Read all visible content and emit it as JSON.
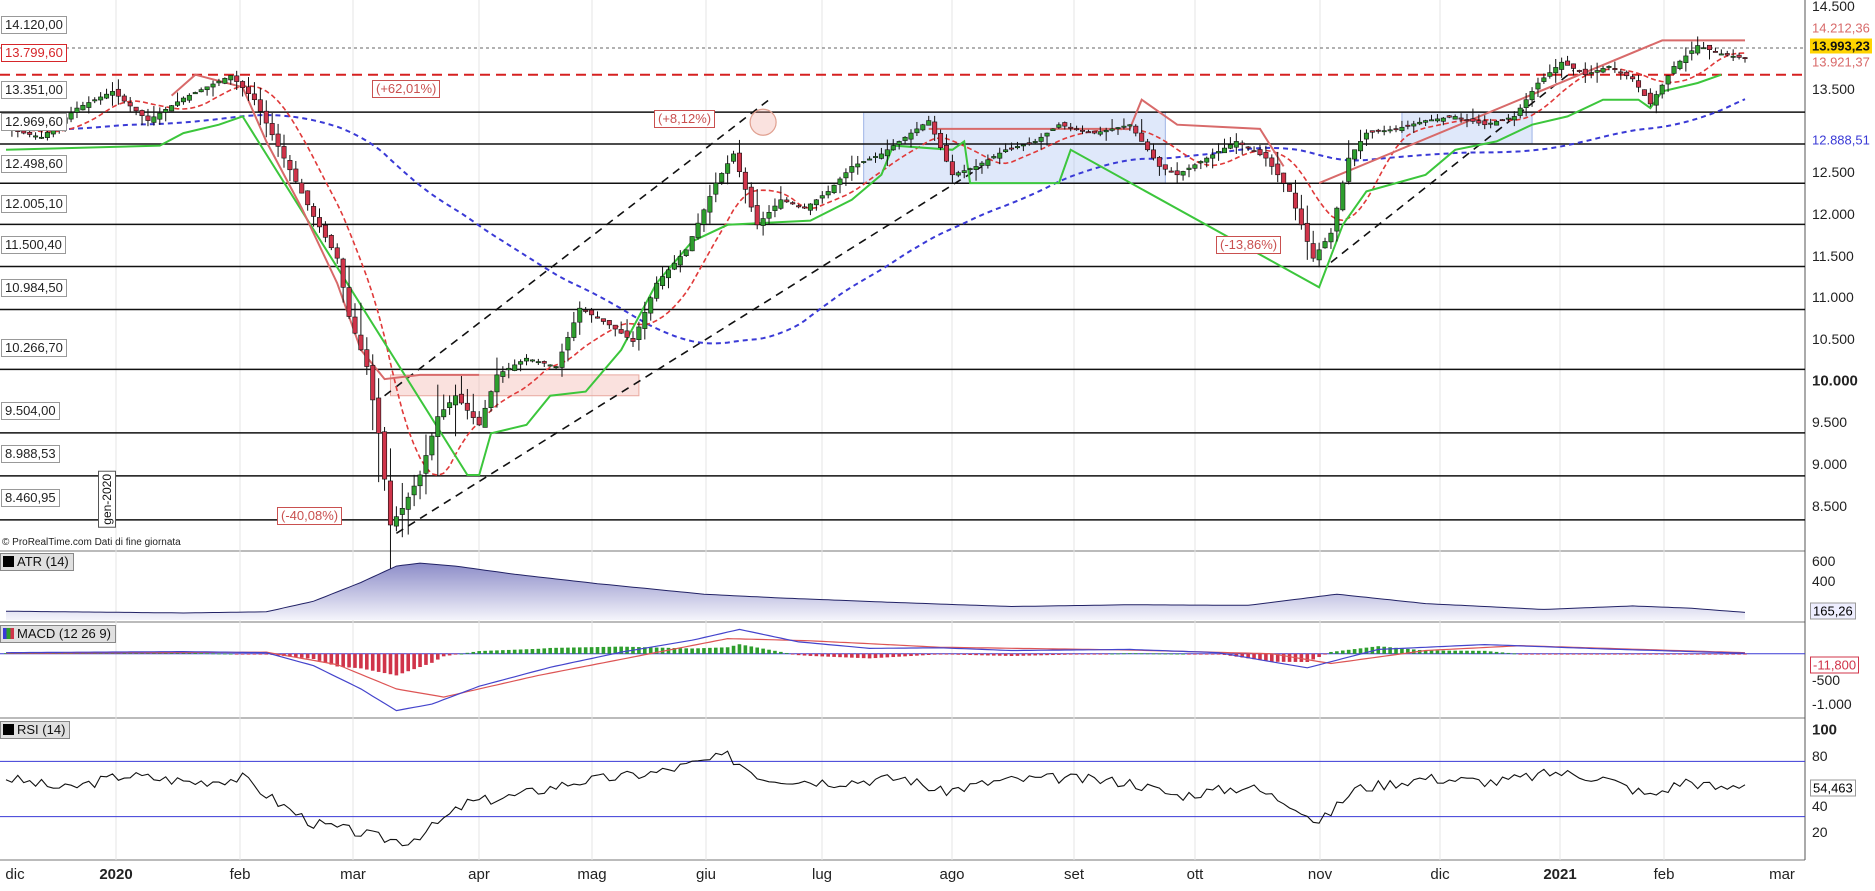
{
  "credit": "© ProRealTime.com Dati di fine giornata",
  "start_label": "gen-2020",
  "colors": {
    "up_candle": "#2e9e2e",
    "down_candle": "#d0344a",
    "stop_up": "#3cc63c",
    "stop_down": "#d86a6a",
    "ma_short": "#e03a3a",
    "ma_long": "#3a3ad6",
    "resistance_dashed": "#d62020",
    "macd_line": "#4444cc",
    "signal_line": "#dd5555",
    "rsi_line": "#111111"
  },
  "chart_data": [
    {
      "type": "candlestick",
      "title": "",
      "x_ticks": [
        {
          "label": "dic",
          "bold": false
        },
        {
          "label": "2020",
          "bold": true
        },
        {
          "label": "feb",
          "bold": false
        },
        {
          "label": "mar",
          "bold": false
        },
        {
          "label": "apr",
          "bold": false
        },
        {
          "label": "mag",
          "bold": false
        },
        {
          "label": "giu",
          "bold": false
        },
        {
          "label": "lug",
          "bold": false
        },
        {
          "label": "ago",
          "bold": false
        },
        {
          "label": "set",
          "bold": false
        },
        {
          "label": "ott",
          "bold": false
        },
        {
          "label": "nov",
          "bold": false
        },
        {
          "label": "dic",
          "bold": false
        },
        {
          "label": "2021",
          "bold": true
        },
        {
          "label": "feb",
          "bold": false
        },
        {
          "label": "mar",
          "bold": false
        }
      ],
      "y_ticks": [
        "14.500",
        "13.500",
        "12.500",
        "12.000",
        "11.500",
        "11.000",
        "10.500",
        "10.000",
        "9.500",
        "9.000",
        "8.500"
      ],
      "ylim": [
        8100,
        14600
      ],
      "price_levels": [
        {
          "label": "14.120,00",
          "value": 14120,
          "style": "solid"
        },
        {
          "label": "13.799,60",
          "value": 13799.6,
          "style": "red-dashed"
        },
        {
          "label": "13.351,00",
          "value": 13351,
          "style": "solid"
        },
        {
          "label": "12.969,60",
          "value": 12969.6,
          "style": "solid"
        },
        {
          "label": "12.498,60",
          "value": 12498.6,
          "style": "solid"
        },
        {
          "label": "12.005,10",
          "value": 12005.1,
          "style": "solid"
        },
        {
          "label": "11.500,40",
          "value": 11500.4,
          "style": "solid"
        },
        {
          "label": "10.984,50",
          "value": 10984.5,
          "style": "solid"
        },
        {
          "label": "10.266,70",
          "value": 10266.7,
          "style": "solid"
        },
        {
          "label": "9.504,00",
          "value": 9504,
          "style": "solid"
        },
        {
          "label": "8.988,53",
          "value": 8988.53,
          "style": "solid"
        },
        {
          "label": "8.460,95",
          "value": 8460.95,
          "style": "solid"
        }
      ],
      "right_markers": [
        {
          "label": "14.212,36",
          "value": 14212.36,
          "color": "#d86a6a"
        },
        {
          "label": "13.993,23",
          "value": 13993.23,
          "color": "#ffd400"
        },
        {
          "label": "13.921,37",
          "value": 13921.37,
          "color": "#d86a6a"
        },
        {
          "label": "12.888,51",
          "value": 12888.51,
          "color": "#3a3ad6"
        }
      ],
      "annotations": [
        "(+62,01%)",
        "(+8,12%)",
        "(-13,86%)",
        "(-40,08%)"
      ],
      "anchors": [
        {
          "t": 0,
          "v": 13150
        },
        {
          "t": 6,
          "v": 13050
        },
        {
          "t": 12,
          "v": 13400
        },
        {
          "t": 18,
          "v": 13600
        },
        {
          "t": 24,
          "v": 13250
        },
        {
          "t": 30,
          "v": 13520
        },
        {
          "t": 38,
          "v": 13790
        },
        {
          "t": 42,
          "v": 13500
        },
        {
          "t": 47,
          "v": 12800
        },
        {
          "t": 52,
          "v": 12100
        },
        {
          "t": 56,
          "v": 11600
        },
        {
          "t": 58,
          "v": 10900
        },
        {
          "t": 61,
          "v": 10300
        },
        {
          "t": 63,
          "v": 9500
        },
        {
          "t": 65,
          "v": 8400
        },
        {
          "t": 67,
          "v": 8600
        },
        {
          "t": 70,
          "v": 9000
        },
        {
          "t": 73,
          "v": 9700
        },
        {
          "t": 76,
          "v": 9950
        },
        {
          "t": 80,
          "v": 9600
        },
        {
          "t": 83,
          "v": 10200
        },
        {
          "t": 88,
          "v": 10400
        },
        {
          "t": 93,
          "v": 10300
        },
        {
          "t": 97,
          "v": 11000
        },
        {
          "t": 102,
          "v": 10800
        },
        {
          "t": 106,
          "v": 10600
        },
        {
          "t": 110,
          "v": 11300
        },
        {
          "t": 115,
          "v": 11700
        },
        {
          "t": 120,
          "v": 12500
        },
        {
          "t": 123,
          "v": 12850
        },
        {
          "t": 127,
          "v": 12000
        },
        {
          "t": 131,
          "v": 12300
        },
        {
          "t": 135,
          "v": 12200
        },
        {
          "t": 139,
          "v": 12400
        },
        {
          "t": 143,
          "v": 12700
        },
        {
          "t": 148,
          "v": 12850
        },
        {
          "t": 153,
          "v": 13100
        },
        {
          "t": 156,
          "v": 13250
        },
        {
          "t": 160,
          "v": 12600
        },
        {
          "t": 164,
          "v": 12700
        },
        {
          "t": 169,
          "v": 12900
        },
        {
          "t": 174,
          "v": 13000
        },
        {
          "t": 178,
          "v": 13200
        },
        {
          "t": 184,
          "v": 13100
        },
        {
          "t": 190,
          "v": 13200
        },
        {
          "t": 195,
          "v": 12700
        },
        {
          "t": 198,
          "v": 12600
        },
        {
          "t": 203,
          "v": 12800
        },
        {
          "t": 208,
          "v": 13000
        },
        {
          "t": 213,
          "v": 12800
        },
        {
          "t": 217,
          "v": 12400
        },
        {
          "t": 221,
          "v": 11600
        },
        {
          "t": 224,
          "v": 11900
        },
        {
          "t": 227,
          "v": 12800
        },
        {
          "t": 230,
          "v": 13100
        },
        {
          "t": 235,
          "v": 13150
        },
        {
          "t": 240,
          "v": 13250
        },
        {
          "t": 245,
          "v": 13300
        },
        {
          "t": 250,
          "v": 13200
        },
        {
          "t": 255,
          "v": 13300
        },
        {
          "t": 259,
          "v": 13700
        },
        {
          "t": 263,
          "v": 13950
        },
        {
          "t": 267,
          "v": 13800
        },
        {
          "t": 271,
          "v": 13900
        },
        {
          "t": 275,
          "v": 13750
        },
        {
          "t": 278,
          "v": 13450
        },
        {
          "t": 282,
          "v": 13900
        },
        {
          "t": 286,
          "v": 14150
        },
        {
          "t": 290,
          "v": 14050
        },
        {
          "t": 294,
          "v": 13993
        }
      ],
      "stop_green": [
        {
          "t": 0,
          "v": 12900
        },
        {
          "t": 26,
          "v": 12950
        },
        {
          "t": 30,
          "v": 13100
        },
        {
          "t": 36,
          "v": 13200
        },
        {
          "t": 40,
          "v": 13300
        },
        {
          "t": 78,
          "v": 9000
        },
        {
          "t": 80,
          "v": 9000
        },
        {
          "t": 82,
          "v": 9500
        },
        {
          "t": 88,
          "v": 9600
        },
        {
          "t": 92,
          "v": 9950
        },
        {
          "t": 98,
          "v": 10000
        },
        {
          "t": 104,
          "v": 10500
        },
        {
          "t": 110,
          "v": 11300
        },
        {
          "t": 116,
          "v": 11800
        },
        {
          "t": 122,
          "v": 12000
        },
        {
          "t": 136,
          "v": 12050
        },
        {
          "t": 143,
          "v": 12300
        },
        {
          "t": 148,
          "v": 12600
        },
        {
          "t": 150,
          "v": 12950
        },
        {
          "t": 160,
          "v": 12900
        },
        {
          "t": 162,
          "v": 13000
        },
        {
          "t": 163,
          "v": 12500
        },
        {
          "t": 178,
          "v": 12500
        },
        {
          "t": 180,
          "v": 12900
        },
        {
          "t": 222,
          "v": 11250
        },
        {
          "t": 226,
          "v": 12000
        },
        {
          "t": 230,
          "v": 12400
        },
        {
          "t": 240,
          "v": 12600
        },
        {
          "t": 245,
          "v": 12900
        },
        {
          "t": 252,
          "v": 13000
        },
        {
          "t": 258,
          "v": 13200
        },
        {
          "t": 264,
          "v": 13300
        },
        {
          "t": 270,
          "v": 13500
        },
        {
          "t": 276,
          "v": 13500
        },
        {
          "t": 278,
          "v": 13400
        },
        {
          "t": 280,
          "v": 13600
        },
        {
          "t": 286,
          "v": 13700
        },
        {
          "t": 290,
          "v": 13800
        }
      ],
      "stop_red": [
        {
          "t": 28,
          "v": 13550
        },
        {
          "t": 32,
          "v": 13800
        },
        {
          "t": 40,
          "v": 13650
        },
        {
          "t": 44,
          "v": 13000
        },
        {
          "t": 50,
          "v": 12200
        },
        {
          "t": 56,
          "v": 11300
        },
        {
          "t": 60,
          "v": 10500
        },
        {
          "t": 64,
          "v": 10150
        },
        {
          "t": 70,
          "v": 10200
        },
        {
          "t": 80,
          "v": 10200
        },
        {
          "t": 156,
          "v": 13150
        },
        {
          "t": 190,
          "v": 13150
        },
        {
          "t": 192,
          "v": 13500
        },
        {
          "t": 198,
          "v": 13200
        },
        {
          "t": 212,
          "v": 13150
        },
        {
          "t": 216,
          "v": 12700
        },
        {
          "t": 222,
          "v": 12500
        },
        {
          "t": 280,
          "v": 14212
        },
        {
          "t": 294,
          "v": 14212
        }
      ]
    },
    {
      "type": "area",
      "title": "ATR (14)",
      "y_ticks": [
        "600",
        "400"
      ],
      "ylim": [
        100,
        680
      ],
      "last_value": "165,26",
      "points": [
        {
          "t": 0,
          "v": 175
        },
        {
          "t": 30,
          "v": 160
        },
        {
          "t": 44,
          "v": 170
        },
        {
          "t": 52,
          "v": 260
        },
        {
          "t": 60,
          "v": 420
        },
        {
          "t": 66,
          "v": 560
        },
        {
          "t": 70,
          "v": 585
        },
        {
          "t": 76,
          "v": 560
        },
        {
          "t": 86,
          "v": 490
        },
        {
          "t": 100,
          "v": 410
        },
        {
          "t": 118,
          "v": 320
        },
        {
          "t": 130,
          "v": 290
        },
        {
          "t": 150,
          "v": 250
        },
        {
          "t": 170,
          "v": 215
        },
        {
          "t": 190,
          "v": 230
        },
        {
          "t": 210,
          "v": 225
        },
        {
          "t": 225,
          "v": 320
        },
        {
          "t": 240,
          "v": 240
        },
        {
          "t": 260,
          "v": 190
        },
        {
          "t": 275,
          "v": 220
        },
        {
          "t": 285,
          "v": 200
        },
        {
          "t": 294,
          "v": 165
        }
      ]
    },
    {
      "type": "macd",
      "title": "MACD (12 26 9)",
      "y_ticks": [
        "-500",
        "-1.000"
      ],
      "ylim": [
        -1150,
        550
      ],
      "last_values": [
        "-11,800"
      ],
      "macd": [
        {
          "t": 0,
          "v": 20
        },
        {
          "t": 30,
          "v": 40
        },
        {
          "t": 44,
          "v": 20
        },
        {
          "t": 52,
          "v": -220
        },
        {
          "t": 60,
          "v": -650
        },
        {
          "t": 66,
          "v": -1050
        },
        {
          "t": 72,
          "v": -930
        },
        {
          "t": 80,
          "v": -600
        },
        {
          "t": 92,
          "v": -250
        },
        {
          "t": 104,
          "v": 30
        },
        {
          "t": 116,
          "v": 250
        },
        {
          "t": 124,
          "v": 450
        },
        {
          "t": 134,
          "v": 220
        },
        {
          "t": 146,
          "v": 100
        },
        {
          "t": 158,
          "v": 110
        },
        {
          "t": 170,
          "v": 60
        },
        {
          "t": 190,
          "v": 80
        },
        {
          "t": 205,
          "v": 20
        },
        {
          "t": 220,
          "v": -260
        },
        {
          "t": 232,
          "v": 80
        },
        {
          "t": 250,
          "v": 170
        },
        {
          "t": 270,
          "v": 90
        },
        {
          "t": 294,
          "v": 10
        }
      ],
      "signal": [
        {
          "t": 0,
          "v": 10
        },
        {
          "t": 44,
          "v": 30
        },
        {
          "t": 56,
          "v": -200
        },
        {
          "t": 66,
          "v": -650
        },
        {
          "t": 74,
          "v": -800
        },
        {
          "t": 90,
          "v": -400
        },
        {
          "t": 106,
          "v": -60
        },
        {
          "t": 122,
          "v": 280
        },
        {
          "t": 136,
          "v": 240
        },
        {
          "t": 158,
          "v": 120
        },
        {
          "t": 190,
          "v": 70
        },
        {
          "t": 214,
          "v": 0
        },
        {
          "t": 224,
          "v": -180
        },
        {
          "t": 240,
          "v": 60
        },
        {
          "t": 256,
          "v": 150
        },
        {
          "t": 294,
          "v": 20
        }
      ]
    },
    {
      "type": "line",
      "title": "RSI (14)",
      "y_ticks": [
        "100",
        "80",
        "40",
        "20"
      ],
      "ylim": [
        0,
        100
      ],
      "hlines": [
        70,
        30
      ],
      "last_value": "54,463",
      "points": [
        {
          "t": 0,
          "v": 58
        },
        {
          "t": 10,
          "v": 50
        },
        {
          "t": 20,
          "v": 60
        },
        {
          "t": 32,
          "v": 55
        },
        {
          "t": 40,
          "v": 58
        },
        {
          "t": 46,
          "v": 40
        },
        {
          "t": 52,
          "v": 25
        },
        {
          "t": 58,
          "v": 20
        },
        {
          "t": 64,
          "v": 14
        },
        {
          "t": 68,
          "v": 12
        },
        {
          "t": 72,
          "v": 22
        },
        {
          "t": 78,
          "v": 40
        },
        {
          "t": 86,
          "v": 45
        },
        {
          "t": 96,
          "v": 55
        },
        {
          "t": 110,
          "v": 62
        },
        {
          "t": 118,
          "v": 70
        },
        {
          "t": 122,
          "v": 74
        },
        {
          "t": 128,
          "v": 58
        },
        {
          "t": 140,
          "v": 55
        },
        {
          "t": 152,
          "v": 58
        },
        {
          "t": 158,
          "v": 48
        },
        {
          "t": 168,
          "v": 56
        },
        {
          "t": 178,
          "v": 58
        },
        {
          "t": 190,
          "v": 55
        },
        {
          "t": 198,
          "v": 45
        },
        {
          "t": 210,
          "v": 52
        },
        {
          "t": 218,
          "v": 38
        },
        {
          "t": 222,
          "v": 25
        },
        {
          "t": 228,
          "v": 50
        },
        {
          "t": 240,
          "v": 58
        },
        {
          "t": 252,
          "v": 55
        },
        {
          "t": 262,
          "v": 62
        },
        {
          "t": 270,
          "v": 58
        },
        {
          "t": 278,
          "v": 45
        },
        {
          "t": 284,
          "v": 56
        },
        {
          "t": 290,
          "v": 50
        },
        {
          "t": 294,
          "v": 54
        }
      ]
    }
  ]
}
